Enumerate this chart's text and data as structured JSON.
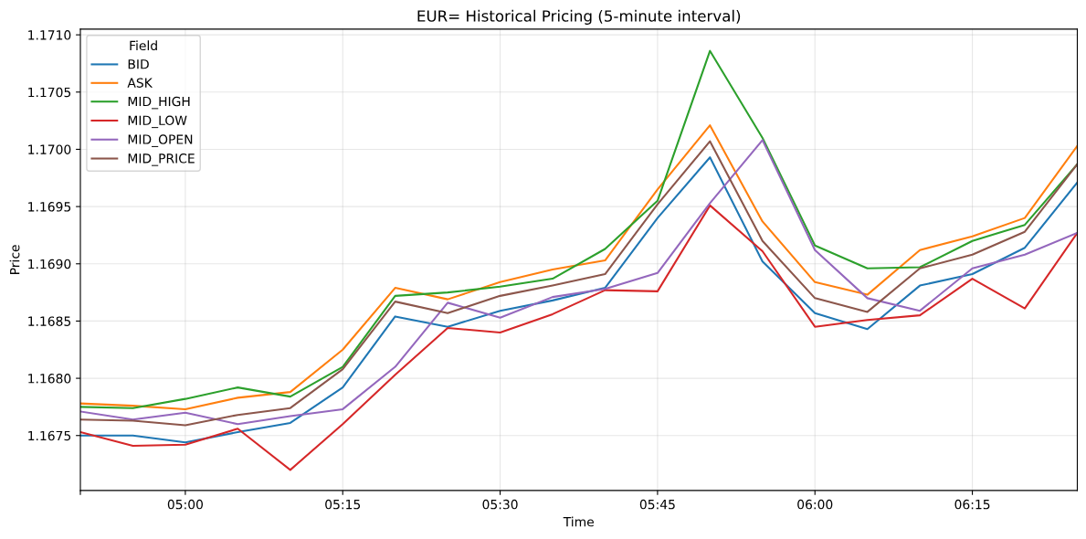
{
  "chart_data": {
    "type": "line",
    "title": "EUR= Historical Pricing (5-minute interval)",
    "xlabel": "Time",
    "ylabel": "Price",
    "legend_title": "Field",
    "legend": "top left",
    "grid": true,
    "x": [
      4.8333,
      4.9167,
      5.0,
      5.0833,
      5.1667,
      5.25,
      5.3333,
      5.4167,
      5.5,
      5.5833,
      5.6667,
      5.75,
      5.8333,
      5.9167,
      6.0,
      6.0833,
      6.1667,
      6.25,
      6.3333,
      6.4167
    ],
    "xlim": [
      4.8333,
      6.4167
    ],
    "xticks": [
      {
        "value": 4.8333,
        "label": null
      },
      {
        "value": 5.0,
        "label": "05:00"
      },
      {
        "value": 5.25,
        "label": "05:15"
      },
      {
        "value": 5.5,
        "label": "05:30"
      },
      {
        "value": 5.75,
        "label": "05:45"
      },
      {
        "value": 6.0,
        "label": "06:00"
      },
      {
        "value": 6.25,
        "label": "06:15"
      }
    ],
    "ylim": [
      1.16702,
      1.17105
    ],
    "yticks": [
      1.1675,
      {
        "value": 1.168,
        "label": "1.1680"
      },
      {
        "value": 1.1685,
        "label": "1.1685"
      },
      {
        "value": 1.169,
        "label": "1.1690"
      },
      1.1695,
      {
        "value": 1.17,
        "label": "1.1700"
      },
      1.1705,
      {
        "value": 1.171,
        "label": "1.1710"
      }
    ],
    "series": [
      {
        "name": "BID",
        "color": "#1f77b4",
        "values": [
          1.1675,
          1.1675,
          1.16744,
          1.16753,
          1.16761,
          1.16792,
          1.16854,
          1.16845,
          1.16859,
          1.16868,
          1.16879,
          1.1694,
          1.16993,
          1.16902,
          1.16857,
          1.16843,
          1.16881,
          1.16891,
          1.16914,
          1.16971
        ]
      },
      {
        "name": "ASK",
        "color": "#ff7f0e",
        "values": [
          1.16778,
          1.16776,
          1.16773,
          1.16783,
          1.16788,
          1.16825,
          1.16879,
          1.16869,
          1.16884,
          1.16895,
          1.16903,
          1.16965,
          1.17021,
          1.16937,
          1.16884,
          1.16873,
          1.16912,
          1.16924,
          1.1694,
          1.17003
        ]
      },
      {
        "name": "MID_HIGH",
        "color": "#2ca02c",
        "values": [
          1.16775,
          1.16774,
          1.16782,
          1.16792,
          1.16784,
          1.1681,
          1.16872,
          1.16875,
          1.1688,
          1.16887,
          1.16913,
          1.16955,
          1.17086,
          1.1701,
          1.16916,
          1.16896,
          1.16897,
          1.1692,
          1.16934,
          1.16987
        ]
      },
      {
        "name": "MID_LOW",
        "color": "#d62728",
        "values": [
          1.16753,
          1.16741,
          1.16742,
          1.16756,
          1.1672,
          1.1676,
          1.16803,
          1.16844,
          1.1684,
          1.16856,
          1.16877,
          1.16876,
          1.16951,
          1.16911,
          1.16845,
          1.16851,
          1.16855,
          1.16887,
          1.16861,
          1.16927
        ]
      },
      {
        "name": "MID_OPEN",
        "color": "#9467bd",
        "values": [
          1.16771,
          1.16764,
          1.1677,
          1.1676,
          1.16767,
          1.16773,
          1.1681,
          1.16866,
          1.16853,
          1.16871,
          1.16878,
          1.16892,
          1.16953,
          1.17008,
          1.16912,
          1.1687,
          1.16859,
          1.16896,
          1.16908,
          1.16927
        ]
      },
      {
        "name": "MID_PRICE",
        "color": "#8c564b",
        "values": [
          1.16764,
          1.16763,
          1.16759,
          1.16768,
          1.16774,
          1.16808,
          1.16867,
          1.16857,
          1.16872,
          1.16881,
          1.16891,
          1.16952,
          1.17007,
          1.1692,
          1.1687,
          1.16858,
          1.16896,
          1.16908,
          1.16928,
          1.16987
        ]
      }
    ]
  }
}
